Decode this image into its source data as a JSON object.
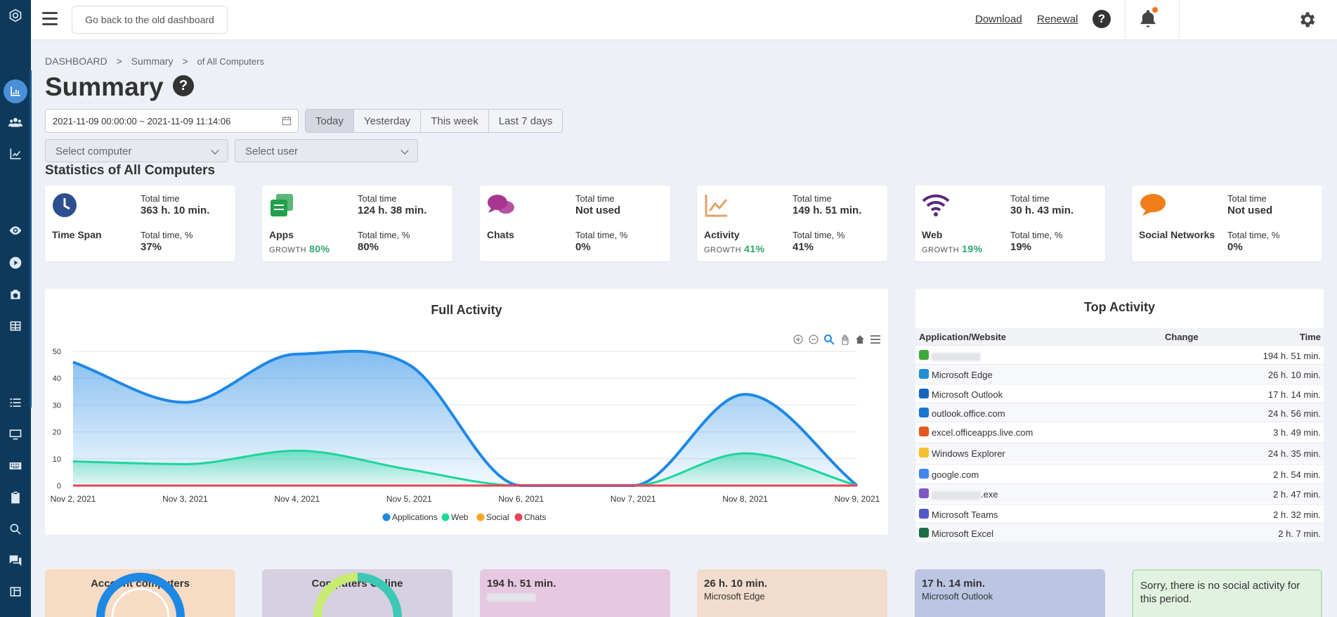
{
  "topbar": {
    "old_dashboard": "Go back to the old dashboard",
    "download": "Download",
    "renewal": "Renewal",
    "help": "?"
  },
  "breadcrumb": {
    "root": "DASHBOARD",
    "sep": ">",
    "summary": "Summary",
    "current": "of All Computers"
  },
  "page": {
    "title": "Summary",
    "help": "?"
  },
  "filters": {
    "date_range": "2021-11-09 00:00:00 ~ 2021-11-09 11:14:06",
    "periods": [
      "Today",
      "Yesterday",
      "This week",
      "Last 7 days"
    ],
    "active_period": "Today",
    "computer_placeholder": "Select computer",
    "user_placeholder": "Select user"
  },
  "stats": {
    "title": "Statistics of All Computers",
    "total_time_label": "Total time",
    "total_pct_label": "Total time, %",
    "growth_label": "GROWTH",
    "cards": [
      {
        "name": "Time Span",
        "total": "363 h. 10 min.",
        "pct": "37%",
        "growth": "",
        "icon": "clock-icon",
        "color": "#2d4f8f"
      },
      {
        "name": "Apps",
        "total": "124 h. 38 min.",
        "pct": "80%",
        "growth": "80%",
        "icon": "apps-icon",
        "color": "#21a04a"
      },
      {
        "name": "Chats",
        "total": "Not used",
        "pct": "0%",
        "growth": "",
        "icon": "chat-icon",
        "color": "#a8358f"
      },
      {
        "name": "Activity",
        "total": "149 h. 51 min.",
        "pct": "41%",
        "growth": "41%",
        "icon": "activity-icon",
        "color": "#e1a36a"
      },
      {
        "name": "Web",
        "total": "30 h. 43 min.",
        "pct": "19%",
        "growth": "19%",
        "icon": "wifi-icon",
        "color": "#5b2a7c"
      },
      {
        "name": "Social Networks",
        "total": "Not used",
        "pct": "0%",
        "growth": "",
        "icon": "social-icon",
        "color": "#f07f1a"
      }
    ]
  },
  "chart_data": {
    "type": "area",
    "title": "Full Activity",
    "x": [
      "Nov 2, 2021",
      "Nov 3, 2021",
      "Nov 4, 2021",
      "Nov 5, 2021",
      "Nov 6, 2021",
      "Nov 7, 2021",
      "Nov 8, 2021",
      "Nov 9, 2021"
    ],
    "ylim": [
      0,
      50
    ],
    "yticks": [
      0,
      10,
      20,
      30,
      40,
      50
    ],
    "series": [
      {
        "name": "Applications",
        "color": "#1e88e5",
        "values": [
          46,
          31,
          49,
          45,
          0,
          0,
          34,
          0
        ]
      },
      {
        "name": "Web",
        "color": "#1dd699",
        "values": [
          9,
          8,
          13,
          6,
          0,
          0,
          12,
          0
        ]
      },
      {
        "name": "Social",
        "color": "#f6a623",
        "values": [
          0,
          0,
          0,
          0,
          0,
          0,
          0,
          0
        ]
      },
      {
        "name": "Chats",
        "color": "#ee4054",
        "values": [
          0,
          0,
          0,
          0,
          0,
          0,
          0,
          0
        ]
      }
    ],
    "legend_position": "bottom"
  },
  "top_activity": {
    "title": "Top Activity",
    "headers": {
      "app": "Application/Website",
      "change": "Change",
      "time": "Time"
    },
    "rows": [
      {
        "name": "",
        "time": "194 h. 51 min.",
        "icon": "app-icon",
        "color": "#3aa93a",
        "blurred": true
      },
      {
        "name": "Microsoft Edge",
        "time": "26 h. 10 min.",
        "icon": "edge-icon",
        "color": "#1f8fd4"
      },
      {
        "name": "Microsoft Outlook",
        "time": "17 h. 14 min.",
        "icon": "outlook-icon",
        "color": "#1565c0"
      },
      {
        "name": "outlook.office.com",
        "time": "24 h. 56 min.",
        "icon": "outlook-icon",
        "color": "#1976d2"
      },
      {
        "name": "excel.officeapps.live.com",
        "time": "3 h. 49 min.",
        "icon": "office-icon",
        "color": "#e3571c"
      },
      {
        "name": "Windows Explorer",
        "time": "24 h. 35 min.",
        "icon": "folder-icon",
        "color": "#f4c12c"
      },
      {
        "name": "google.com",
        "time": "2 h. 54 min.",
        "icon": "google-icon",
        "color": "#4285f4"
      },
      {
        "name": ".exe",
        "time": "2 h. 47 min.",
        "icon": "unknown-icon",
        "color": "#7e57c2",
        "blurred": true
      },
      {
        "name": "Microsoft Teams",
        "time": "2 h. 32 min.",
        "icon": "teams-icon",
        "color": "#5059c9"
      },
      {
        "name": "Microsoft Excel",
        "time": "2 h. 7 min.",
        "icon": "excel-icon",
        "color": "#1d7044"
      }
    ]
  },
  "bottom_cards": {
    "account_computers": "Account computers",
    "computers_online": "Computers Online",
    "top1_time": "194 h. 51 min.",
    "top2_time": "26 h. 10 min.",
    "top2_name": "Microsoft Edge",
    "top3_time": "17 h. 14 min.",
    "top3_name": "Microsoft Outlook",
    "social_msg": "Sorry, there is no social activity for this period."
  }
}
